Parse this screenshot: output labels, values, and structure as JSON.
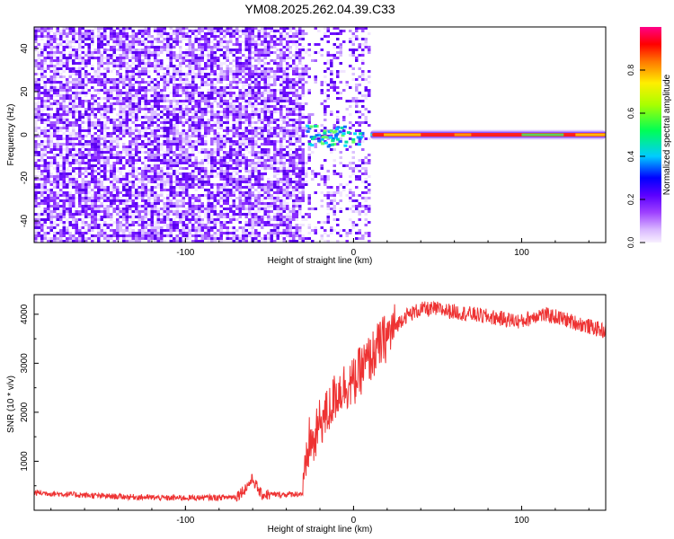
{
  "title": "YM08.2025.262.04.39.C33",
  "chart_data": [
    {
      "type": "heatmap",
      "xlabel": "Height of straight line (km)",
      "ylabel": "Frequency (Hz)",
      "xlim": [
        -190,
        150
      ],
      "ylim": [
        -50,
        50
      ],
      "xticks": [
        -100,
        0,
        100
      ],
      "yticks": [
        -40,
        -20,
        0,
        20,
        40
      ],
      "colorbar": {
        "label": "Normalized spectral amplitude",
        "range": [
          0,
          1
        ],
        "ticks": [
          0.0,
          0.2,
          0.4,
          0.6,
          0.8
        ],
        "colormap": "rainbow (magenta-white to purple, blue, cyan, green, yellow, orange, red, magenta)"
      },
      "features": {
        "broadband_noise_region_km": [
          -190,
          10
        ],
        "noise_amplitude": "0.0-0.2 (purple)",
        "transition_burst": {
          "x_range_km": [
            -30,
            5
          ],
          "freq_range_hz": [
            -5,
            5
          ],
          "amplitude": "0.3-0.5 (cyan)"
        },
        "narrowband_line": {
          "x_range_km": [
            10,
            150
          ],
          "freq_hz": 0,
          "peak_amplitude": 1.0
        }
      }
    },
    {
      "type": "line",
      "xlabel": "Height of straight line (km)",
      "ylabel": "SNR (10 * v/v)",
      "xlim": [
        -190,
        150
      ],
      "ylim": [
        0,
        4400
      ],
      "xticks": [
        -100,
        0,
        100
      ],
      "yticks": [
        1000,
        2000,
        3000,
        4000
      ],
      "series": [
        {
          "color": "#ee3333",
          "x": [
            -190,
            -150,
            -110,
            -80,
            -70,
            -65,
            -60,
            -55,
            -45,
            -35,
            -30,
            -28,
            -26,
            -24,
            -20,
            -15,
            -10,
            -5,
            0,
            5,
            10,
            15,
            20,
            25,
            30,
            40,
            50,
            60,
            70,
            80,
            90,
            100,
            110,
            120,
            130,
            140,
            150
          ],
          "y": [
            360,
            290,
            250,
            260,
            280,
            420,
            640,
            320,
            320,
            330,
            340,
            900,
            1500,
            1300,
            1800,
            2000,
            2400,
            2550,
            2600,
            2900,
            3100,
            3350,
            3550,
            3750,
            3950,
            4100,
            4100,
            4050,
            4000,
            3950,
            3900,
            3850,
            4000,
            3950,
            3850,
            3750,
            3650
          ]
        }
      ]
    }
  ]
}
